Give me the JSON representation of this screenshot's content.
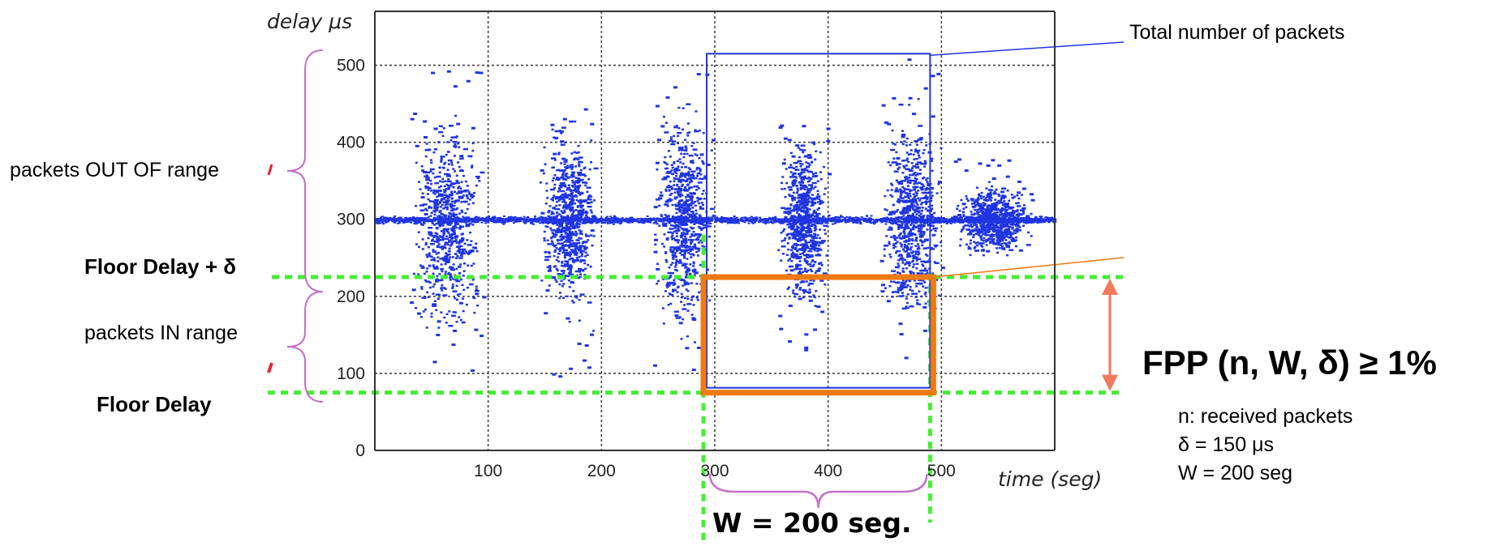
{
  "chart_data": {
    "type": "scatter",
    "xlabel": "time (seg)",
    "ylabel": "delay μs",
    "x_ticks": [
      100,
      200,
      300,
      400,
      500
    ],
    "y_ticks": [
      0,
      100,
      200,
      300,
      400,
      500
    ],
    "xlim": [
      0,
      600
    ],
    "ylim": [
      0,
      570
    ],
    "grid": true,
    "baseline_delay": 300,
    "bursts": [
      {
        "x_start": 30,
        "x_end": 95,
        "y_min": 80,
        "y_max": 505
      },
      {
        "x_start": 145,
        "x_end": 195,
        "y_min": 90,
        "y_max": 455
      },
      {
        "x_start": 245,
        "x_end": 300,
        "y_min": 80,
        "y_max": 520
      },
      {
        "x_start": 355,
        "x_end": 400,
        "y_min": 110,
        "y_max": 430
      },
      {
        "x_start": 445,
        "x_end": 500,
        "y_min": 110,
        "y_max": 515
      },
      {
        "x_start": 510,
        "x_end": 580,
        "y_min": 250,
        "y_max": 390
      }
    ],
    "window": {
      "x_start": 290,
      "x_end": 490,
      "floor_delay": 75,
      "floor_plus_delta": 225,
      "total_box_top": 515
    }
  },
  "colors": {
    "points": "#1f35e0",
    "guide": "#44ee33",
    "window_box": "#f07a12",
    "total_box": "#1f35e0",
    "arrow": "#f07a5a",
    "brace": "#c271c8",
    "red_mark": "#e8242a"
  },
  "annotations": {
    "total_packets": "Total number of packets",
    "out_of_range": "packets OUT OF range",
    "in_range": "packets IN range",
    "floor_delay_plus": "Floor Delay + δ",
    "floor_delay": "Floor Delay",
    "fpp": "FPP (n, W, δ) ≥ 1%",
    "notes": [
      "n: received packets",
      "δ = 150 μs",
      "W = 200 seg"
    ],
    "window_label": "W = 200 seg."
  }
}
